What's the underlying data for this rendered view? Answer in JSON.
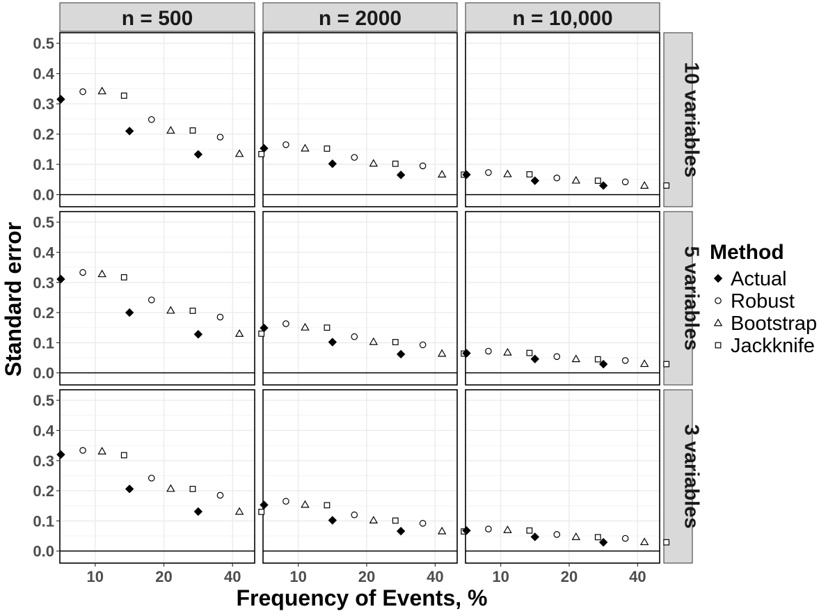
{
  "chart_data": {
    "type": "scatter",
    "title": "",
    "xlabel": "Frequency of Events, %",
    "ylabel": "Standard error",
    "x_ticks": [
      "10",
      "20",
      "40"
    ],
    "y_ticks": [
      "0.0",
      "0.1",
      "0.2",
      "0.3",
      "0.4",
      "0.5"
    ],
    "ylim": [
      0,
      0.5
    ],
    "grid": true,
    "legend": {
      "title": "Method",
      "position": "right",
      "items": [
        {
          "name": "Actual",
          "marker": "filled-diamond"
        },
        {
          "name": "Robust",
          "marker": "open-circle"
        },
        {
          "name": "Bootstrap",
          "marker": "open-triangle"
        },
        {
          "name": "Jackknife",
          "marker": "open-square"
        }
      ]
    },
    "facet_columns": [
      "n = 500",
      "n = 2000",
      "n = 10,000"
    ],
    "facet_rows": [
      "10 variables",
      "5 variables",
      "3 variables"
    ],
    "colors": {
      "strip_bg": "#d9d9d9",
      "grid": "#ebebeb",
      "marker": "#000000"
    },
    "panels": [
      {
        "row": 0,
        "col": 0,
        "series": {
          "Actual": [
            0.315,
            0.21,
            0.133
          ],
          "Robust": [
            0.34,
            0.248,
            0.19
          ],
          "Bootstrap": [
            0.342,
            0.212,
            0.135
          ],
          "Jackknife": [
            0.327,
            0.212,
            0.134
          ]
        }
      },
      {
        "row": 0,
        "col": 1,
        "series": {
          "Actual": [
            0.153,
            0.102,
            0.065
          ],
          "Robust": [
            0.165,
            0.123,
            0.095
          ],
          "Bootstrap": [
            0.153,
            0.103,
            0.067
          ],
          "Jackknife": [
            0.152,
            0.102,
            0.066
          ]
        }
      },
      {
        "row": 0,
        "col": 2,
        "series": {
          "Actual": [
            0.066,
            0.046,
            0.03
          ],
          "Robust": [
            0.073,
            0.055,
            0.042
          ],
          "Bootstrap": [
            0.068,
            0.047,
            0.03
          ],
          "Jackknife": [
            0.067,
            0.046,
            0.03
          ]
        }
      },
      {
        "row": 1,
        "col": 0,
        "series": {
          "Actual": [
            0.311,
            0.2,
            0.128
          ],
          "Robust": [
            0.333,
            0.242,
            0.185
          ],
          "Bootstrap": [
            0.328,
            0.207,
            0.13
          ],
          "Jackknife": [
            0.317,
            0.206,
            0.13
          ]
        }
      },
      {
        "row": 1,
        "col": 1,
        "series": {
          "Actual": [
            0.149,
            0.102,
            0.062
          ],
          "Robust": [
            0.163,
            0.12,
            0.093
          ],
          "Bootstrap": [
            0.151,
            0.103,
            0.064
          ],
          "Jackknife": [
            0.15,
            0.102,
            0.064
          ]
        }
      },
      {
        "row": 1,
        "col": 2,
        "series": {
          "Actual": [
            0.065,
            0.046,
            0.029
          ],
          "Robust": [
            0.072,
            0.054,
            0.041
          ],
          "Bootstrap": [
            0.068,
            0.046,
            0.03
          ],
          "Jackknife": [
            0.066,
            0.045,
            0.029
          ]
        }
      },
      {
        "row": 2,
        "col": 0,
        "series": {
          "Actual": [
            0.32,
            0.206,
            0.131
          ],
          "Robust": [
            0.334,
            0.242,
            0.185
          ],
          "Bootstrap": [
            0.331,
            0.207,
            0.131
          ],
          "Jackknife": [
            0.318,
            0.206,
            0.13
          ]
        }
      },
      {
        "row": 2,
        "col": 1,
        "series": {
          "Actual": [
            0.153,
            0.102,
            0.066
          ],
          "Robust": [
            0.165,
            0.12,
            0.092
          ],
          "Bootstrap": [
            0.154,
            0.102,
            0.066
          ],
          "Jackknife": [
            0.152,
            0.101,
            0.065
          ]
        }
      },
      {
        "row": 2,
        "col": 2,
        "series": {
          "Actual": [
            0.068,
            0.047,
            0.029
          ],
          "Robust": [
            0.073,
            0.055,
            0.042
          ],
          "Bootstrap": [
            0.07,
            0.047,
            0.03
          ],
          "Jackknife": [
            0.068,
            0.046,
            0.029
          ]
        }
      }
    ]
  }
}
